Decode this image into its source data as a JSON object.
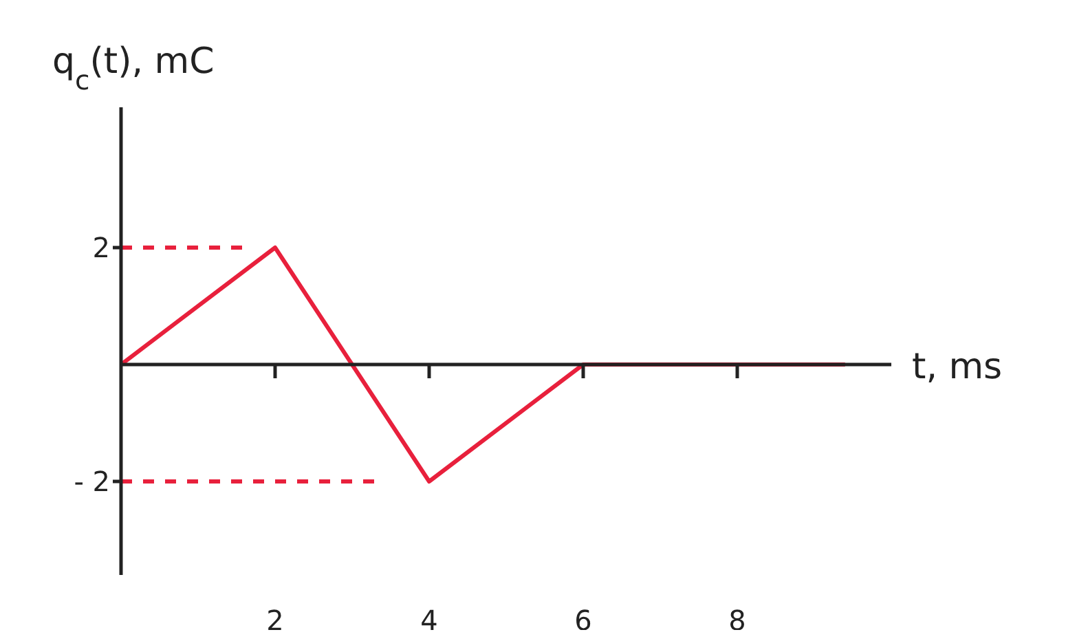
{
  "chart_data": {
    "type": "line",
    "xlabel": "t, ms",
    "ylabel": "q$_{c}$(t), mC",
    "xlim": [
      0,
      10
    ],
    "ylim": [
      -3.6,
      4.4
    ],
    "xticks": [
      2,
      4,
      6,
      8
    ],
    "yticks": [
      {
        "value": 2,
        "label": "2"
      },
      {
        "value": -2,
        "label": "- 2"
      }
    ],
    "marker": "none",
    "series": [
      {
        "color": "#e8203c",
        "x": [
          0,
          2,
          4,
          6,
          9.4
        ],
        "values": [
          0,
          2,
          -2,
          0,
          0
        ],
        "line_style": "solid"
      },
      {
        "color": "#e8203c",
        "x": [
          0,
          1.6
        ],
        "values": [
          2,
          2
        ],
        "line_style": "dashed"
      },
      {
        "color": "#e8203c",
        "x": [
          0,
          3.3
        ],
        "values": [
          -2,
          -2
        ],
        "line_style": "dashed"
      }
    ]
  }
}
